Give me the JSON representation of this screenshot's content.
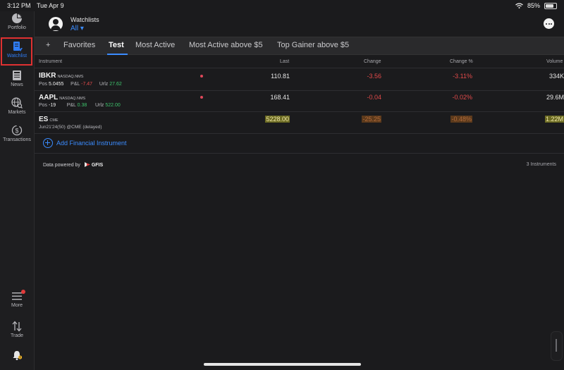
{
  "status_bar": {
    "time": "3:12 PM",
    "date": "Tue Apr 9",
    "battery": "85%"
  },
  "sidebar": {
    "items": [
      {
        "label": "Portfolio",
        "icon": "pie-chart-icon"
      },
      {
        "label": "Watchlist",
        "icon": "watchlist-icon",
        "active": true
      },
      {
        "label": "News",
        "icon": "news-icon"
      },
      {
        "label": "Markets",
        "icon": "globe-search-icon"
      },
      {
        "label": "Transactions",
        "icon": "dollar-cycle-icon"
      },
      {
        "label": "More",
        "icon": "menu-icon"
      },
      {
        "label": "Trade",
        "icon": "trade-arrows-icon"
      }
    ]
  },
  "header": {
    "title": "Watchlists",
    "selector": "All ▾"
  },
  "tabs": [
    {
      "label": "+"
    },
    {
      "label": "Favorites"
    },
    {
      "label": "Test",
      "active": true
    },
    {
      "label": "Most Active"
    },
    {
      "label": "Most Active above $5"
    },
    {
      "label": "Top Gainer above $5"
    }
  ],
  "columns": [
    "Instrument",
    "Last",
    "Change",
    "Change %",
    "Volume"
  ],
  "rows": [
    {
      "symbol": "IBKR",
      "exchange": "NASDAQ.NMS",
      "pos_label": "Pos",
      "pos": "5.0455",
      "pnl_label": "P&L",
      "pnl": "-7.47",
      "urlz_label": "Urlz",
      "urlz": "27.62",
      "last": "110.81",
      "change": "-3.56",
      "change_pct": "-3.11%",
      "volume": "334K"
    },
    {
      "symbol": "AAPL",
      "exchange": "NASDAQ.NMS",
      "pos_label": "Pos",
      "pos": "-19",
      "pnl_label": "P&L",
      "pnl": "0.38",
      "urlz_label": "Urlz",
      "urlz": "522.00",
      "last": "168.41",
      "change": "-0.04",
      "change_pct": "-0.02%",
      "volume": "29.6M"
    },
    {
      "symbol": "ES",
      "exchange": "CME",
      "detail": "Jun21'24(50) @CME (delayed)",
      "last": "5228.00",
      "change": "-25.25",
      "change_pct": "-0.48%",
      "volume": "1.22M"
    }
  ],
  "add_instrument": "Add Financial Instrument",
  "footer": {
    "powered_by": "Data powered by",
    "brand": "GFIS",
    "count": "3 Instruments"
  },
  "colors": {
    "accent": "#3b8cff",
    "negative": "#e24a4a",
    "positive": "#3ec46d",
    "active_box": "#e03131"
  }
}
